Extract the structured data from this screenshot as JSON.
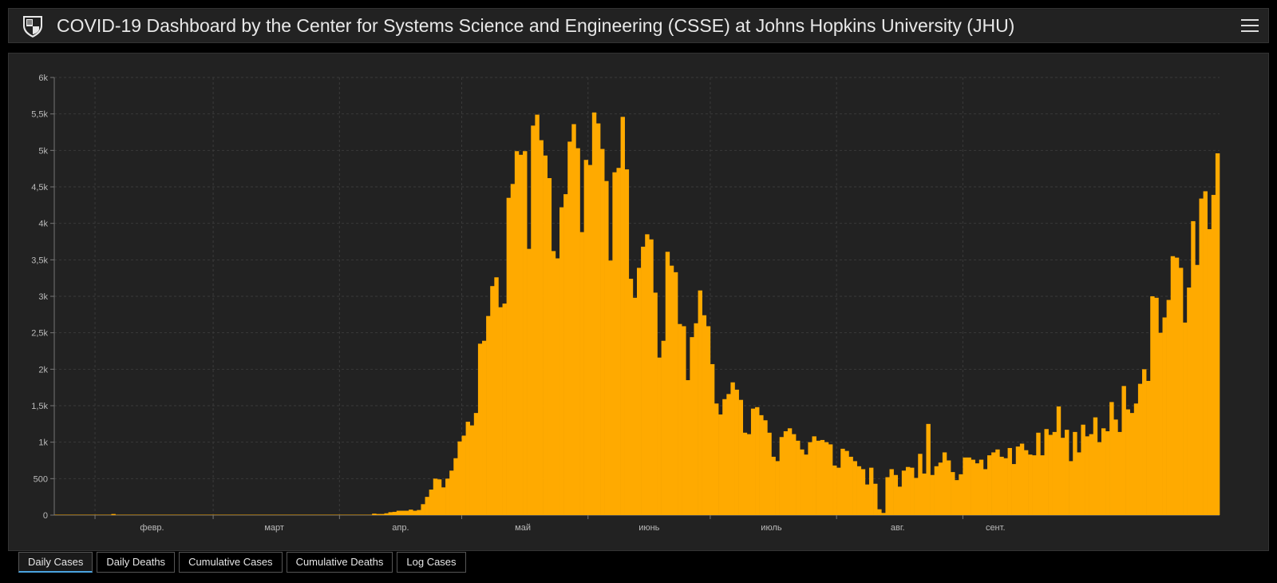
{
  "header": {
    "title": "COVID-19 Dashboard by the Center for Systems Science and Engineering (CSSE) at Johns Hopkins University (JHU)",
    "menu_icon": "hamburger-menu-icon",
    "logo_icon": "jhu-shield-logo-icon"
  },
  "tabs": [
    {
      "label": "Daily Cases",
      "active": true
    },
    {
      "label": "Daily Deaths",
      "active": false
    },
    {
      "label": "Cumulative Cases",
      "active": false
    },
    {
      "label": "Cumulative Deaths",
      "active": false
    },
    {
      "label": "Log Cases",
      "active": false
    }
  ],
  "colors": {
    "bar": "#FFAA00",
    "background": "#222222",
    "grid": "#3a3a3a",
    "accent": "#4aa3df"
  },
  "chart_data": {
    "type": "bar",
    "title": "",
    "xlabel": "",
    "ylabel": "",
    "ylim": [
      0,
      6000
    ],
    "y_ticks": [
      0,
      500,
      1000,
      1500,
      2000,
      2500,
      3000,
      3500,
      4000,
      4500,
      5000,
      5500,
      6000
    ],
    "y_tick_labels": [
      "0",
      "500",
      "1k",
      "1,5k",
      "2k",
      "2,5k",
      "3k",
      "3,5k",
      "4k",
      "4,5k",
      "5k",
      "5,5k",
      "6k"
    ],
    "x_tick_labels": [
      "февр.",
      "март",
      "апр.",
      "май",
      "июнь",
      "июль",
      "авг.",
      "сент."
    ],
    "grid": true,
    "legend": "none",
    "note_x": "daily bars, approx. Jan 22 to Sep 24",
    "values": [
      5,
      5,
      5,
      5,
      5,
      5,
      5,
      5,
      5,
      5,
      5,
      5,
      5,
      5,
      15,
      5,
      5,
      5,
      5,
      5,
      5,
      5,
      5,
      5,
      5,
      5,
      5,
      5,
      5,
      5,
      5,
      5,
      5,
      5,
      5,
      5,
      5,
      5,
      5,
      5,
      5,
      5,
      5,
      5,
      5,
      5,
      5,
      5,
      5,
      5,
      5,
      5,
      5,
      5,
      5,
      5,
      5,
      5,
      5,
      5,
      5,
      5,
      5,
      5,
      5,
      5,
      5,
      5,
      5,
      5,
      5,
      5,
      5,
      5,
      5,
      5,
      5,
      5,
      20,
      15,
      15,
      25,
      40,
      45,
      60,
      60,
      60,
      75,
      60,
      70,
      150,
      250,
      350,
      500,
      490,
      380,
      500,
      610,
      780,
      1010,
      1090,
      1280,
      1230,
      1400,
      2350,
      2390,
      2730,
      3140,
      3260,
      2850,
      2900,
      4350,
      4540,
      4990,
      4940,
      4990,
      3650,
      5340,
      5490,
      5140,
      4930,
      4620,
      3620,
      3520,
      4220,
      4400,
      5120,
      5360,
      5030,
      3880,
      4870,
      4800,
      5520,
      5370,
      5020,
      4580,
      3490,
      4700,
      4760,
      5460,
      4740,
      3240,
      2980,
      3390,
      3680,
      3850,
      3780,
      3050,
      2160,
      2390,
      3610,
      3420,
      3330,
      2620,
      2590,
      1850,
      2440,
      2630,
      3080,
      2740,
      2590,
      2070,
      1530,
      1380,
      1590,
      1660,
      1820,
      1720,
      1580,
      1130,
      1110,
      1460,
      1480,
      1370,
      1300,
      1130,
      800,
      740,
      1070,
      1150,
      1190,
      1110,
      1020,
      900,
      830,
      1000,
      1080,
      1020,
      1030,
      1000,
      970,
      680,
      650,
      910,
      880,
      800,
      740,
      670,
      630,
      420,
      650,
      430,
      80,
      30,
      520,
      630,
      550,
      390,
      610,
      660,
      650,
      510,
      840,
      570,
      1250,
      550,
      670,
      720,
      860,
      750,
      590,
      480,
      560,
      790,
      790,
      760,
      710,
      760,
      630,
      820,
      860,
      900,
      800,
      780,
      920,
      700,
      940,
      980,
      890,
      830,
      820,
      1130,
      820,
      1180,
      1100,
      1140,
      1490,
      1060,
      1170,
      740,
      1140,
      860,
      1240,
      1080,
      1110,
      1340,
      1000,
      1190,
      1150,
      1550,
      1310,
      1140,
      1770,
      1450,
      1400,
      1530,
      1800,
      2000,
      1840,
      3000,
      2980,
      2500,
      2710,
      2950,
      3550,
      3530,
      3390,
      2640,
      3120,
      4030,
      3430,
      4340,
      4440,
      3920,
      4390,
      4960
    ]
  }
}
